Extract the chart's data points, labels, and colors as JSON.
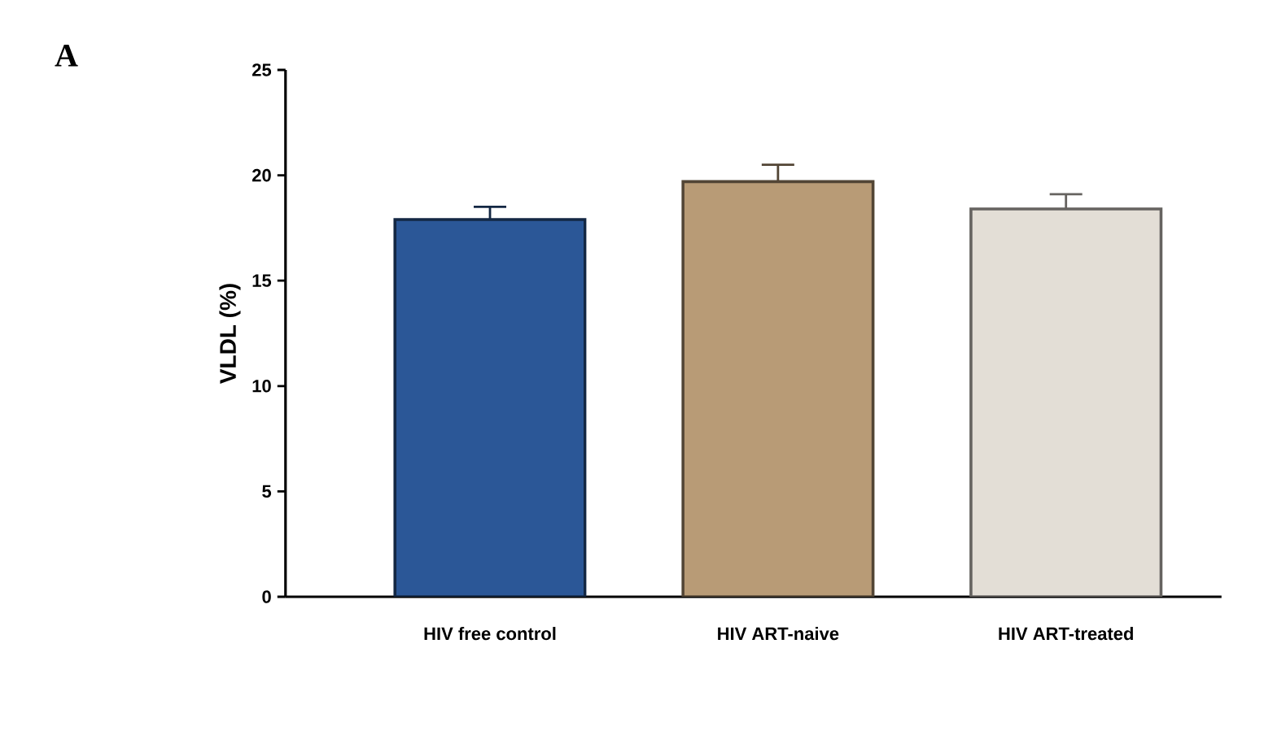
{
  "chart_data": {
    "type": "bar",
    "ylabel": "VLDL (%)",
    "categories": [
      "HIV free control",
      "HIV ART-naive",
      "HIV ART-treated"
    ],
    "values": [
      17.9,
      19.7,
      18.4
    ],
    "errors": [
      [
        17.9,
        18.5
      ],
      [
        19.7,
        20.5
      ],
      [
        18.4,
        19.1
      ]
    ],
    "colors": [
      "#2b5797",
      "#b89b76",
      "#e3ded6"
    ],
    "ylim": [
      0,
      25
    ],
    "yticks": [
      0,
      5,
      10,
      15,
      20,
      25
    ],
    "annotations": [
      "A"
    ],
    "grid": false
  }
}
